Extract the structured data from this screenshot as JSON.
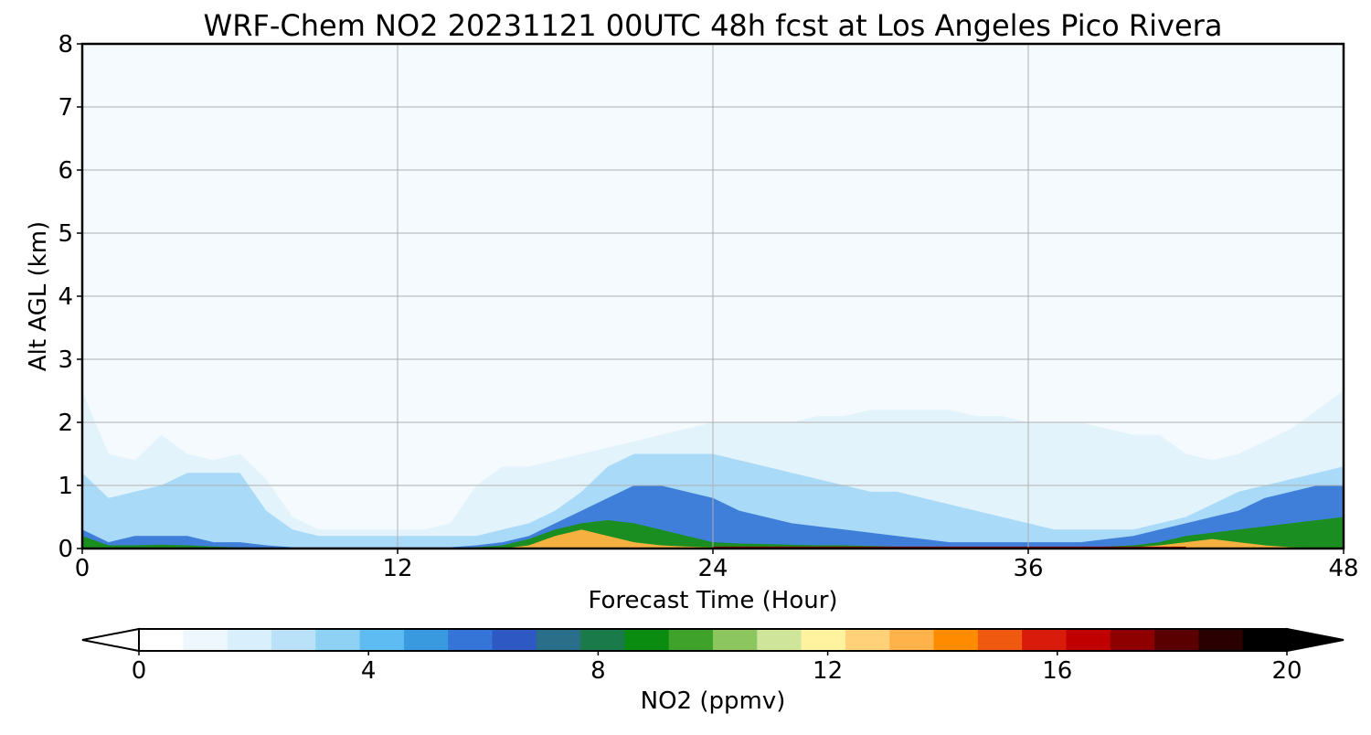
{
  "chart_data": {
    "type": "heatmap",
    "title": "WRF-Chem NO2  20231121 00UTC 48h fcst at Los Angeles Pico Rivera",
    "xlabel": "Forecast Time (Hour)",
    "ylabel": "Alt AGL (km)",
    "xlim": [
      0,
      48
    ],
    "ylim": [
      0,
      8
    ],
    "x_ticks": [
      "0",
      "12",
      "24",
      "36",
      "48"
    ],
    "y_ticks": [
      "0",
      "1",
      "2",
      "3",
      "4",
      "5",
      "6",
      "7",
      "8"
    ],
    "grid": true,
    "colorbar": {
      "label": "NO2  (ppmv)",
      "range": [
        0,
        20
      ],
      "ticks": [
        "0",
        "4",
        "8",
        "12",
        "16",
        "20"
      ],
      "extend": "both",
      "colors": [
        "#ffffff",
        "#eef7fd",
        "#d9effb",
        "#b9e2f8",
        "#8fd0f5",
        "#5fbcf2",
        "#3a9ae0",
        "#3575d8",
        "#2e59c4",
        "#2a6e8a",
        "#1a7a4a",
        "#0a8c10",
        "#3fa32b",
        "#8cc65e",
        "#cfe69a",
        "#fff3a0",
        "#ffd27a",
        "#ffb24a",
        "#ff8c00",
        "#f05a10",
        "#d91b0b",
        "#c00000",
        "#8e0000",
        "#5a0000",
        "#2a0000",
        "#000000"
      ]
    },
    "profiles_km": {
      "hours": [
        0,
        1,
        2,
        3,
        4,
        5,
        6,
        7,
        8,
        9,
        10,
        11,
        12,
        13,
        14,
        15,
        16,
        17,
        18,
        19,
        20,
        21,
        22,
        23,
        24,
        25,
        26,
        27,
        28,
        29,
        30,
        31,
        32,
        33,
        34,
        35,
        36,
        37,
        38,
        39,
        40,
        41,
        42,
        43,
        44,
        45,
        46,
        47,
        48
      ],
      "top_extent": [
        2.5,
        1.5,
        1.4,
        1.8,
        1.5,
        1.4,
        1.5,
        1.1,
        0.5,
        0.3,
        0.3,
        0.3,
        0.3,
        0.3,
        0.4,
        1.0,
        1.3,
        1.3,
        1.4,
        1.5,
        1.6,
        1.7,
        1.8,
        1.9,
        2.0,
        2.0,
        2.0,
        2.0,
        2.1,
        2.1,
        2.2,
        2.2,
        2.2,
        2.2,
        2.1,
        2.1,
        2.0,
        2.0,
        2.0,
        1.9,
        1.8,
        1.8,
        1.5,
        1.4,
        1.5,
        1.7,
        1.9,
        2.2,
        2.5
      ],
      "light_blue": [
        1.2,
        0.8,
        0.9,
        1.0,
        1.2,
        1.2,
        1.2,
        0.6,
        0.3,
        0.2,
        0.2,
        0.2,
        0.2,
        0.2,
        0.2,
        0.2,
        0.3,
        0.4,
        0.6,
        0.9,
        1.3,
        1.5,
        1.5,
        1.5,
        1.5,
        1.4,
        1.3,
        1.2,
        1.1,
        1.0,
        0.9,
        0.9,
        0.8,
        0.7,
        0.6,
        0.5,
        0.4,
        0.3,
        0.3,
        0.3,
        0.3,
        0.4,
        0.5,
        0.7,
        0.9,
        1.0,
        1.1,
        1.2,
        1.3
      ],
      "mid_blue": [
        0.3,
        0.1,
        0.2,
        0.2,
        0.2,
        0.1,
        0.1,
        0.05,
        0.02,
        0.02,
        0.02,
        0.02,
        0.02,
        0.02,
        0.02,
        0.05,
        0.1,
        0.2,
        0.4,
        0.6,
        0.8,
        1.0,
        1.0,
        0.9,
        0.8,
        0.6,
        0.5,
        0.4,
        0.35,
        0.3,
        0.25,
        0.2,
        0.15,
        0.1,
        0.1,
        0.1,
        0.1,
        0.1,
        0.1,
        0.15,
        0.2,
        0.3,
        0.4,
        0.5,
        0.6,
        0.8,
        0.9,
        1.0,
        1.0
      ],
      "green": [
        0.2,
        0.05,
        0.05,
        0.06,
        0.05,
        0.03,
        0.02,
        0.01,
        0.01,
        0.01,
        0.01,
        0.01,
        0.01,
        0.01,
        0.01,
        0.02,
        0.05,
        0.15,
        0.3,
        0.4,
        0.45,
        0.4,
        0.3,
        0.2,
        0.1,
        0.08,
        0.07,
        0.06,
        0.05,
        0.05,
        0.04,
        0.03,
        0.03,
        0.02,
        0.02,
        0.02,
        0.02,
        0.02,
        0.02,
        0.03,
        0.05,
        0.1,
        0.2,
        0.25,
        0.3,
        0.35,
        0.4,
        0.45,
        0.5
      ],
      "yellow_orange": [
        0,
        0,
        0,
        0,
        0,
        0,
        0,
        0,
        0,
        0,
        0,
        0,
        0,
        0,
        0,
        0,
        0,
        0.05,
        0.2,
        0.3,
        0.2,
        0.1,
        0.05,
        0.03,
        0.02,
        0.02,
        0.02,
        0.01,
        0.01,
        0.01,
        0.01,
        0,
        0,
        0,
        0,
        0,
        0,
        0,
        0,
        0,
        0.02,
        0.05,
        0.1,
        0.15,
        0.1,
        0.05,
        0.02,
        0.01,
        0
      ]
    }
  }
}
